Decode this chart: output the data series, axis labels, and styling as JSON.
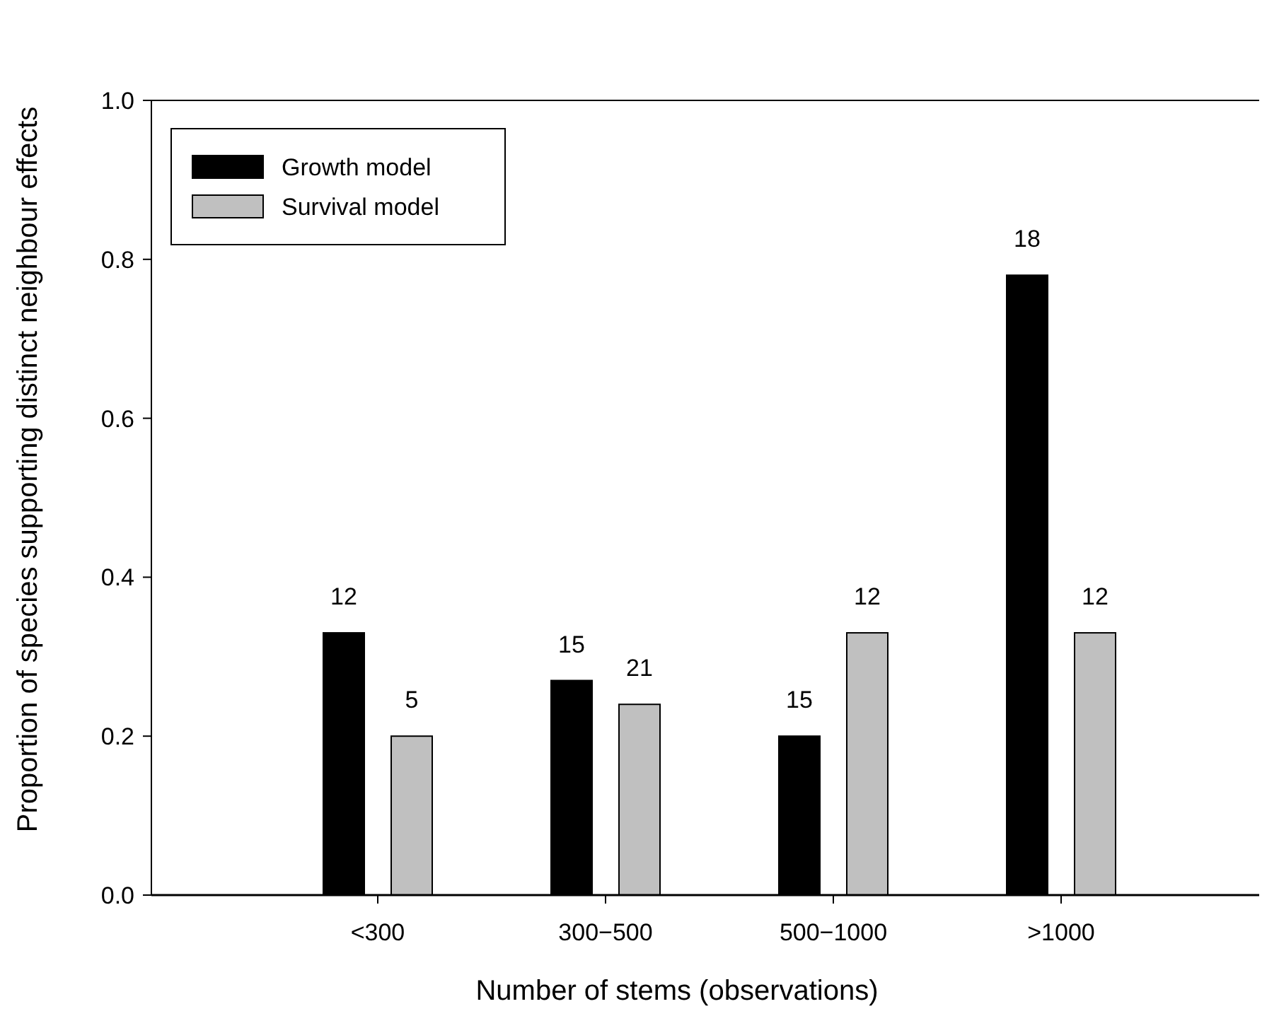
{
  "chart_data": {
    "type": "bar",
    "xlabel": "Number of stems (observations)",
    "ylabel": "Proportion of species supporting distinct neighbour effects",
    "categories": [
      "<300",
      "300−500",
      "500−1000",
      ">1000"
    ],
    "series": [
      {
        "name": "Growth model",
        "color": "#000000",
        "values": [
          0.33,
          0.27,
          0.2,
          0.78
        ]
      },
      {
        "name": "Survival model",
        "color": "#c0c0c0",
        "values": [
          0.2,
          0.24,
          0.33,
          0.33
        ]
      }
    ],
    "annotations": [
      "12",
      "5",
      "15",
      "21",
      "15",
      "12",
      "18",
      "12"
    ],
    "ylim": [
      0,
      1
    ],
    "yticks": [
      {
        "value": 0,
        "label": "0.0"
      },
      {
        "value": 0.2,
        "label": "0.2"
      },
      {
        "value": 0.4,
        "label": "0.4"
      },
      {
        "value": 0.6,
        "label": "0.6"
      },
      {
        "value": 0.8,
        "label": "0.8"
      },
      {
        "value": 1,
        "label": "1.0"
      }
    ],
    "grid": false,
    "legend": "top left"
  }
}
